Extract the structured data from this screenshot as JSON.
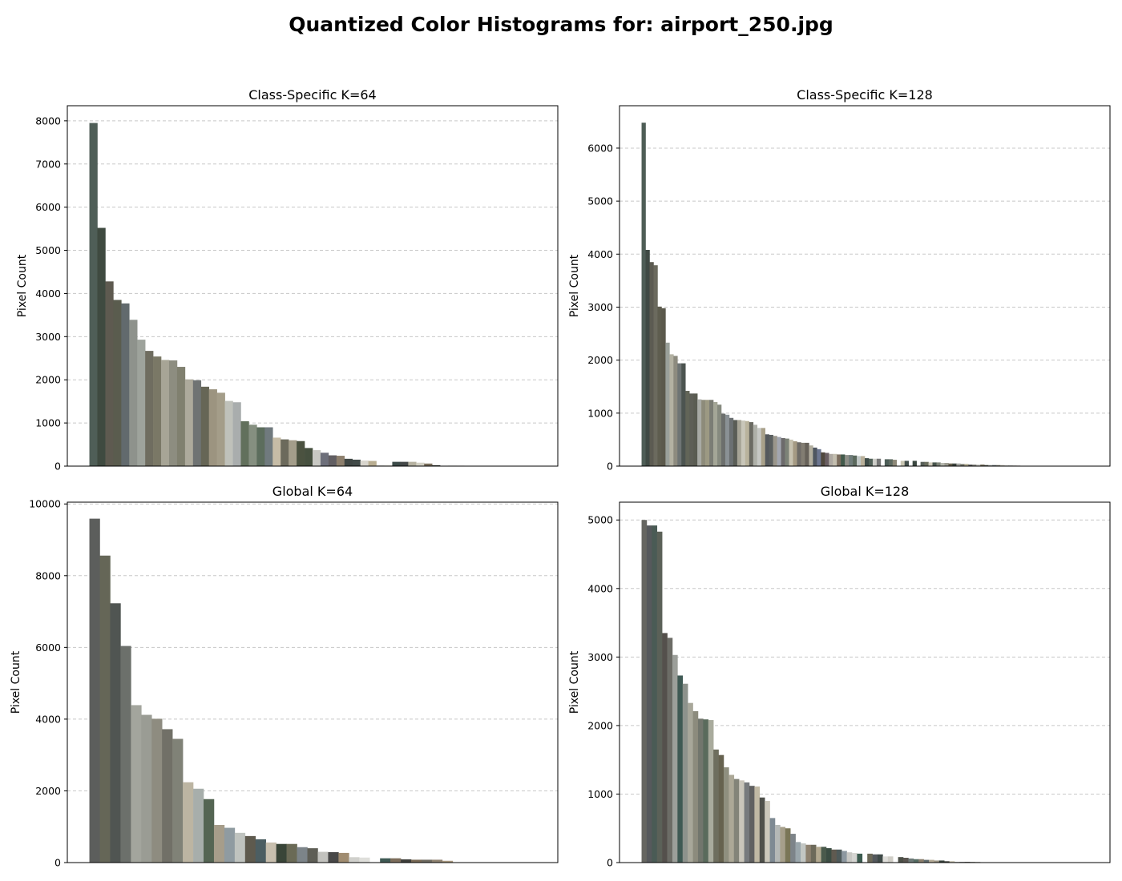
{
  "figure": {
    "suptitle": "Quantized Color Histograms for: airport_250.jpg"
  },
  "chart_data": [
    {
      "type": "bar",
      "title": "Class-Specific K=64",
      "xlabel": "",
      "ylabel": "Pixel Count",
      "ylim": [
        0,
        8350
      ],
      "yticks": [
        0,
        1000,
        2000,
        3000,
        4000,
        5000,
        6000,
        7000,
        8000
      ],
      "x_ticks_shown": false,
      "grid": "y-dashed",
      "slots": 56,
      "values": [
        7950,
        5520,
        4280,
        3850,
        3770,
        3390,
        2930,
        2670,
        2540,
        2460,
        2450,
        2300,
        2010,
        1990,
        1840,
        1780,
        1700,
        1510,
        1480,
        1040,
        960,
        900,
        900,
        660,
        620,
        600,
        580,
        420,
        370,
        310,
        250,
        240,
        170,
        150,
        130,
        120,
        20,
        30,
        100,
        100,
        100,
        80,
        60,
        20,
        10,
        10,
        10,
        5,
        5,
        0,
        0,
        0,
        0,
        0,
        0,
        0
      ],
      "colors": [
        "#4f5e57",
        "#3f4a40",
        "#5e5a50",
        "#5a5c4e",
        "#626a6d",
        "#8e928c",
        "#9ea39c",
        "#6f6d60",
        "#7a7866",
        "#a7a596",
        "#8d8d80",
        "#80806f",
        "#adaa9c",
        "#6f7373",
        "#666656",
        "#9c9480",
        "#a49d89",
        "#bfc1ba",
        "#a9adad",
        "#62705c",
        "#858f80",
        "#5c6d5d",
        "#707a7e",
        "#c6bca6",
        "#6c6a5c",
        "#a39d8a",
        "#4b5240",
        "#46503f",
        "#c8c8c3",
        "#6d6f7a",
        "#615e62",
        "#8d7f6d",
        "#3f4644",
        "#414a48",
        "#d8d5cd",
        "#b8ad91",
        "#cfd0cc",
        "#e6e5e0",
        "#3c4b49",
        "#444848",
        "#b5b1a0",
        "#d3d1c5",
        "#7a6e5c",
        "#2a2e2a",
        "#d4d6d2",
        "#56574d",
        "#888478",
        "#b7b2a5",
        "#9ea2a3",
        "#c0bfb8",
        "#777",
        "#999",
        "#bbb",
        "#ccc",
        "#ddd",
        "#eee"
      ]
    },
    {
      "type": "bar",
      "title": "Class-Specific K=128",
      "xlabel": "",
      "ylabel": "Pixel Count",
      "ylim": [
        0,
        6800
      ],
      "yticks": [
        0,
        1000,
        2000,
        3000,
        4000,
        5000,
        6000
      ],
      "x_ticks_shown": false,
      "grid": "y-dashed",
      "slots": 112,
      "values": [
        6480,
        4080,
        3850,
        3790,
        3010,
        2980,
        2330,
        2110,
        2080,
        1940,
        1940,
        1420,
        1370,
        1370,
        1260,
        1250,
        1250,
        1250,
        1210,
        1160,
        990,
        970,
        910,
        870,
        870,
        860,
        850,
        830,
        780,
        720,
        720,
        600,
        590,
        570,
        550,
        530,
        520,
        500,
        470,
        450,
        440,
        440,
        390,
        350,
        320,
        260,
        250,
        230,
        230,
        220,
        220,
        210,
        210,
        200,
        190,
        190,
        150,
        140,
        140,
        140,
        0,
        130,
        130,
        120,
        0,
        100,
        100,
        0,
        100,
        0,
        80,
        80,
        70,
        70,
        70,
        60,
        60,
        50,
        50,
        50,
        40,
        40,
        30,
        30,
        30,
        30,
        20,
        20,
        20,
        20,
        20,
        10,
        10,
        10,
        10,
        5,
        5,
        5,
        0,
        0,
        0,
        0,
        0,
        0,
        0,
        0,
        0,
        0,
        0,
        0,
        0,
        0
      ],
      "colors": [
        "#4e5d56",
        "#3f4a44",
        "#5c5b52",
        "#6b6a5e",
        "#5e5d4f",
        "#5b594c",
        "#9aa09a",
        "#b3b1a2",
        "#8d8b7f",
        "#6e7474",
        "#4c5450",
        "#626558",
        "#5e5f57",
        "#5a5c52",
        "#a8aaa5",
        "#8d8b7a",
        "#9c9983",
        "#7b7d75",
        "#a4a697",
        "#868a7f",
        "#6c6f6d",
        "#8a9195",
        "#6b7072",
        "#5a5d56",
        "#a6a496",
        "#c8c6b9",
        "#b9b39d",
        "#6b6b63",
        "#aeb0a8",
        "#c6c8c4",
        "#a9a18a",
        "#55595d",
        "#5b6060",
        "#9a968b",
        "#a2a6b0",
        "#6c6a6b",
        "#7c8277",
        "#c7c2b0",
        "#a59a83",
        "#6f6c67",
        "#827d72",
        "#666159",
        "#b2ae9e",
        "#4f5660",
        "#6c7690",
        "#50483e",
        "#6a5f63",
        "#aea9a2",
        "#c3beaf",
        "#7c6e5f",
        "#425a4b",
        "#8e8f88",
        "#6f7c7a",
        "#5a685c",
        "#c0c7c6",
        "#b9b09a",
        "#3e4c48",
        "#536259",
        "#cdcdc8",
        "#777",
        "#999",
        "#4c5d57",
        "#5e6a61",
        "#8d8878",
        "#bbb",
        "#c9c6b3",
        "#44504c",
        "#ccc",
        "#3a4740",
        "#ddd",
        "#585f58",
        "#6a6e5e",
        "#cfcabb",
        "#47554c",
        "#7e8479",
        "#b5b7ad",
        "#9c9b91",
        "#66604e",
        "#3e4640",
        "#a3a4a0",
        "#75766a",
        "#b0aa90",
        "#5c5c5c",
        "#8c8c84",
        "#c4c4c0",
        "#76705d",
        "#484c44",
        "#9a9d9c",
        "#5f6a6c",
        "#828174",
        "#b8b5ab",
        "#54584c",
        "#303630",
        "#6b6b5f",
        "#a7a39a",
        "#3d413c",
        "#8a877c",
        "#c2c0b8",
        "#eee",
        "#eee",
        "#eee",
        "#eee",
        "#eee",
        "#eee",
        "#eee",
        "#eee",
        "#eee",
        "#eee",
        "#eee",
        "#eee",
        "#eee",
        "#eee"
      ]
    },
    {
      "type": "bar",
      "title": "Global K=64",
      "xlabel": "",
      "ylabel": "Pixel Count",
      "ylim": [
        0,
        10050
      ],
      "yticks": [
        0,
        2000,
        4000,
        6000,
        8000,
        10000
      ],
      "x_ticks_shown": false,
      "grid": "y-dashed",
      "slots": 43,
      "values": [
        9590,
        8560,
        7230,
        6040,
        4390,
        4120,
        4010,
        3720,
        3450,
        2240,
        2060,
        1770,
        1050,
        970,
        830,
        740,
        650,
        560,
        520,
        520,
        430,
        400,
        300,
        290,
        270,
        150,
        140,
        0,
        120,
        120,
        90,
        80,
        80,
        80,
        50,
        0,
        0,
        0,
        0,
        0,
        0,
        0,
        0
      ],
      "colors": [
        "#5c5e5c",
        "#656657",
        "#505552",
        "#6c706b",
        "#a3a59d",
        "#9a9c94",
        "#8e8c80",
        "#717067",
        "#808277",
        "#bcb5a2",
        "#a7aeab",
        "#546553",
        "#a69d8a",
        "#8f9ba1",
        "#bfc3bf",
        "#5e5a4e",
        "#4c5e62",
        "#c8bfae",
        "#394538",
        "#6a6a56",
        "#7c8489",
        "#5e5e56",
        "#c2c2be",
        "#484848",
        "#a08c70",
        "#d0d0cc",
        "#dfdfdb",
        "#e5e5e5",
        "#3f5a54",
        "#7d6e5c",
        "#3e3e3a",
        "#786854",
        "#6e6a60",
        "#8e8270",
        "#aa9a80",
        "#ccc",
        "#ccc",
        "#ccc",
        "#ccc",
        "#ccc",
        "#ccc",
        "#ccc",
        "#ccc"
      ]
    },
    {
      "type": "bar",
      "title": "Global K=128",
      "xlabel": "",
      "ylabel": "Pixel Count",
      "ylim": [
        0,
        5260
      ],
      "yticks": [
        0,
        1000,
        2000,
        3000,
        4000,
        5000
      ],
      "x_ticks_shown": false,
      "grid": "y-dashed",
      "slots": 87,
      "values": [
        5000,
        4920,
        4920,
        4830,
        3350,
        3280,
        3030,
        2730,
        2610,
        2330,
        2210,
        2100,
        2090,
        2080,
        1650,
        1570,
        1390,
        1280,
        1220,
        1200,
        1170,
        1120,
        1110,
        950,
        900,
        650,
        550,
        520,
        500,
        420,
        300,
        280,
        260,
        260,
        230,
        230,
        210,
        190,
        190,
        170,
        150,
        140,
        130,
        0,
        130,
        120,
        120,
        90,
        90,
        0,
        80,
        70,
        60,
        50,
        50,
        40,
        40,
        30,
        30,
        20,
        20,
        10,
        10,
        10,
        10,
        10,
        5,
        5,
        0,
        0,
        0,
        0,
        0,
        0,
        0,
        0,
        0,
        0,
        0,
        0,
        0,
        0,
        0,
        0,
        0,
        0,
        0
      ],
      "colors": [
        "#666661",
        "#56595c",
        "#4a5b55",
        "#5b6158",
        "#54504c",
        "#6c6c66",
        "#9c9f9a",
        "#3f5a54",
        "#8d928c",
        "#a8a79a",
        "#8c8b7d",
        "#72766d",
        "#5a6b5c",
        "#a9ab9d",
        "#6e6e5e",
        "#66624f",
        "#8f8f7f",
        "#aca897",
        "#838479",
        "#c9c5ba",
        "#777a7d",
        "#616161",
        "#c1b9a4",
        "#4f514b",
        "#cbc8bb",
        "#7e8a93",
        "#b4b8b6",
        "#a69f8b",
        "#7a7657",
        "#7d8489",
        "#9aa6ab",
        "#c2c6c3",
        "#8e8270",
        "#6d6a5a",
        "#b2a88f",
        "#4a5a4c",
        "#3b4d43",
        "#5f5a50",
        "#4e5a5a",
        "#8d98a0",
        "#c8c8c4",
        "#d5d5d2",
        "#3c5c50",
        "#ccc",
        "#6b6857",
        "#53585c",
        "#3f4a48",
        "#e0dfdb",
        "#d0cec7",
        "#ddd",
        "#4c4f47",
        "#5a5550",
        "#6e7a78",
        "#556c63",
        "#8a7e6c",
        "#5f6a6c",
        "#b4aa95",
        "#9a9483",
        "#36403a",
        "#42443e",
        "#c3bdaa",
        "#9ca2a4",
        "#6c6c6a",
        "#3a3a36",
        "#7b7c72",
        "#aeaea8",
        "#585852",
        "#484c4a",
        "#eee",
        "#eee",
        "#eee",
        "#eee",
        "#eee",
        "#eee",
        "#eee",
        "#eee",
        "#eee",
        "#eee",
        "#eee",
        "#eee",
        "#eee",
        "#eee",
        "#eee",
        "#eee",
        "#eee",
        "#eee",
        "#eee"
      ]
    }
  ]
}
